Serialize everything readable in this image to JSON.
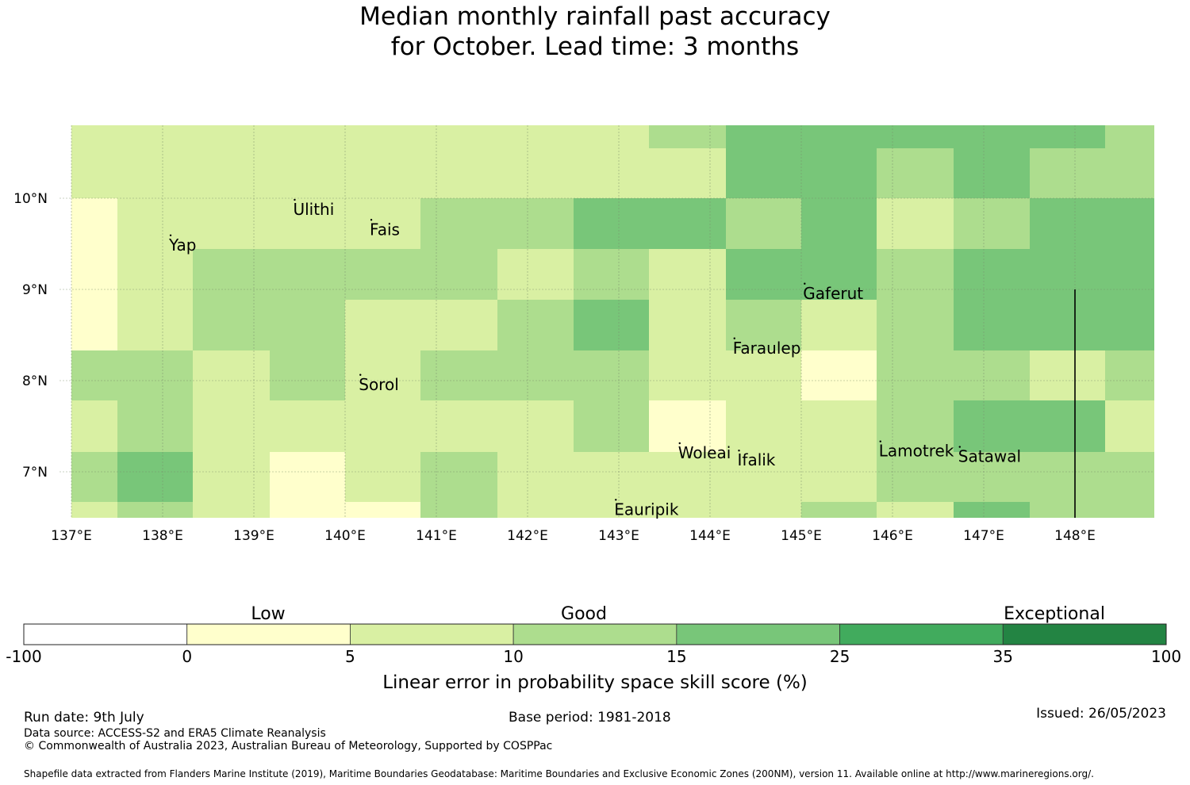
{
  "title": {
    "line1": "Median monthly rainfall past accuracy",
    "line2": "for October. Lead time: 3 months"
  },
  "chart_data": {
    "type": "heatmap",
    "lon_range": [
      137,
      149
    ],
    "lat_range": [
      6.5,
      10.8
    ],
    "x_ticks": [
      "137°E",
      "138°E",
      "139°E",
      "140°E",
      "141°E",
      "142°E",
      "143°E",
      "144°E",
      "145°E",
      "146°E",
      "147°E",
      "148°E"
    ],
    "y_ticks": [
      "10°N",
      "9°N",
      "8°N",
      "7°N"
    ],
    "lon_edges": [
      137,
      137.5,
      138.33,
      139.17,
      140,
      140.83,
      141.67,
      142.5,
      143.33,
      144.17,
      145,
      145.83,
      146.67,
      147.5,
      148.33,
      149
    ],
    "lat_edges": [
      10.8,
      10.55,
      10,
      9.44,
      8.89,
      8.33,
      7.78,
      7.22,
      6.67,
      6.5
    ],
    "grid": [
      [
        "5-10",
        "5-10",
        "5-10",
        "5-10",
        "5-10",
        "5-10",
        "5-10",
        "5-10",
        "10-15",
        "15-25",
        "15-25",
        "15-25",
        "15-25",
        "15-25",
        "10-15"
      ],
      [
        "5-10",
        "5-10",
        "5-10",
        "5-10",
        "5-10",
        "5-10",
        "5-10",
        "5-10",
        "5-10",
        "15-25",
        "15-25",
        "10-15",
        "15-25",
        "10-15",
        "10-15"
      ],
      [
        "0-5",
        "5-10",
        "5-10",
        "5-10",
        "5-10",
        "10-15",
        "10-15",
        "15-25",
        "15-25",
        "10-15",
        "15-25",
        "5-10",
        "10-15",
        "15-25",
        "15-25"
      ],
      [
        "0-5",
        "5-10",
        "10-15",
        "10-15",
        "10-15",
        "10-15",
        "5-10",
        "10-15",
        "5-10",
        "15-25",
        "15-25",
        "10-15",
        "15-25",
        "15-25",
        "15-25"
      ],
      [
        "0-5",
        "5-10",
        "10-15",
        "10-15",
        "5-10",
        "5-10",
        "10-15",
        "15-25",
        "5-10",
        "10-15",
        "5-10",
        "10-15",
        "15-25",
        "15-25",
        "15-25"
      ],
      [
        "10-15",
        "10-15",
        "5-10",
        "10-15",
        "5-10",
        "10-15",
        "10-15",
        "10-15",
        "5-10",
        "5-10",
        "0-5",
        "10-15",
        "10-15",
        "5-10",
        "10-15"
      ],
      [
        "5-10",
        "10-15",
        "5-10",
        "5-10",
        "5-10",
        "5-10",
        "5-10",
        "10-15",
        "0-5",
        "5-10",
        "5-10",
        "10-15",
        "15-25",
        "15-25",
        "5-10"
      ],
      [
        "10-15",
        "15-25",
        "5-10",
        "0-5",
        "5-10",
        "10-15",
        "5-10",
        "5-10",
        "5-10",
        "5-10",
        "5-10",
        "10-15",
        "10-15",
        "10-15",
        "10-15"
      ],
      [
        "5-10",
        "10-15",
        "5-10",
        "0-5",
        "0-5",
        "10-15",
        "5-10",
        "5-10",
        "5-10",
        "5-10",
        "10-15",
        "5-10",
        "15-25",
        "10-15",
        "10-15"
      ]
    ],
    "places": [
      {
        "name": "Ulithi",
        "lon": 139.43,
        "lat": 9.87
      },
      {
        "name": "Fais",
        "lon": 140.27,
        "lat": 9.65
      },
      {
        "name": "Yap",
        "lon": 138.07,
        "lat": 9.48
      },
      {
        "name": "Gaferut",
        "lon": 145.02,
        "lat": 8.95
      },
      {
        "name": "Faraulep",
        "lon": 144.25,
        "lat": 8.35
      },
      {
        "name": "Sorol",
        "lon": 140.15,
        "lat": 7.95
      },
      {
        "name": "Woleai",
        "lon": 143.65,
        "lat": 7.2
      },
      {
        "name": "Ifalik",
        "lon": 144.3,
        "lat": 7.12
      },
      {
        "name": "Lamotrek",
        "lon": 145.85,
        "lat": 7.22
      },
      {
        "name": "Satawal",
        "lon": 146.72,
        "lat": 7.16
      },
      {
        "name": "Eauripik",
        "lon": 142.95,
        "lat": 6.58
      }
    ],
    "boundary_line": {
      "lon": 148.0,
      "lat_from": 6.5,
      "lat_to": 9.0
    },
    "legend": {
      "categories": [
        "Low",
        "Good",
        "Exceptional"
      ],
      "bins": [
        {
          "range": "-100-0",
          "color": "#ffffff"
        },
        {
          "range": "0-5",
          "color": "#ffffcc"
        },
        {
          "range": "5-10",
          "color": "#d9f0a3"
        },
        {
          "range": "10-15",
          "color": "#addd8e"
        },
        {
          "range": "15-25",
          "color": "#78c679"
        },
        {
          "range": "25-35",
          "color": "#41ab5d"
        },
        {
          "range": "35-100",
          "color": "#238443"
        }
      ],
      "tick_labels": [
        "-100",
        "0",
        "5",
        "10",
        "15",
        "25",
        "35",
        "100"
      ],
      "label": "Linear error in probability space skill score (%)"
    }
  },
  "footer": {
    "run_date": "Run date: 9th July",
    "base_period": "Base period: 1981-2018",
    "issued": "Issued: 26/05/2023",
    "data_source": "Data source: ACCESS-S2 and ERA5 Climate Reanalysis",
    "copyright": "© Commonwealth of Australia 2023, Australian Bureau of Meteorology, Supported by COSPPac",
    "shapefile": "Shapefile data extracted from Flanders Marine Institute (2019), Maritime Boundaries Geodatabase: Maritime Boundaries and Exclusive Economic Zones (200NM), version 11. Available online at http://www.marineregions.org/."
  }
}
